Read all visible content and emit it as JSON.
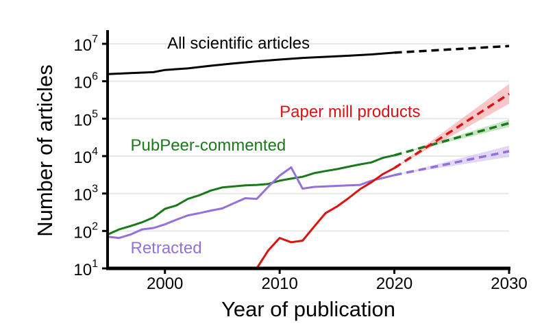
{
  "chart_data": {
    "type": "line",
    "xlabel": "Year of publication",
    "ylabel": "Number of articles",
    "xlim": [
      1995,
      2030
    ],
    "ylim": [
      10,
      10000000
    ],
    "yscale": "log",
    "grid": "horizontal",
    "xticks": [
      2000,
      2010,
      2020,
      2030
    ],
    "yticks": [
      {
        "base": "10",
        "exp": "1",
        "value": 10
      },
      {
        "base": "10",
        "exp": "2",
        "value": 100
      },
      {
        "base": "10",
        "exp": "3",
        "value": 1000
      },
      {
        "base": "10",
        "exp": "4",
        "value": 10000
      },
      {
        "base": "10",
        "exp": "5",
        "value": 100000
      },
      {
        "base": "10",
        "exp": "6",
        "value": 1000000
      },
      {
        "base": "10",
        "exp": "7",
        "value": 10000000
      }
    ],
    "series": [
      {
        "name": "All scientific articles",
        "color": "#000000",
        "label_year": 2000.2,
        "label_value": 7500000,
        "x": [
          1995,
          1997,
          1999,
          2000,
          2002,
          2004,
          2006,
          2008,
          2010,
          2012,
          2014,
          2016,
          2018,
          2020
        ],
        "y": [
          1550000,
          1650000,
          1750000,
          2000000,
          2200000,
          2600000,
          3000000,
          3400000,
          3800000,
          4200000,
          4500000,
          4800000,
          5200000,
          5800000
        ],
        "projection": {
          "x": [
            2020,
            2030
          ],
          "y": [
            5800000,
            8700000
          ],
          "band": null
        }
      },
      {
        "name": "PubPeer-commented",
        "color": "#1a7a1a",
        "band_color": "#9fd49a",
        "label_year": 1997,
        "label_value": 14000,
        "x": [
          1995,
          1996,
          1997,
          1998,
          1999,
          2000,
          2001,
          2002,
          2003,
          2004,
          2005,
          2006,
          2007,
          2008,
          2009,
          2010,
          2011,
          2012,
          2013,
          2014,
          2015,
          2016,
          2017,
          2018,
          2019,
          2020
        ],
        "y": [
          80,
          110,
          135,
          170,
          230,
          390,
          480,
          720,
          900,
          1200,
          1450,
          1550,
          1650,
          1700,
          1800,
          2200,
          2500,
          2800,
          3500,
          4000,
          4500,
          5200,
          6000,
          6800,
          9000,
          10500
        ],
        "projection": {
          "x": [
            2020,
            2030
          ],
          "y": [
            10500,
            76000
          ],
          "band": [
            60000,
            95000
          ]
        }
      },
      {
        "name": "Retracted",
        "color": "#9370db",
        "band_color": "#cdbcf0",
        "label_year": 1997,
        "label_value": 25,
        "x": [
          1995,
          1996,
          1997,
          1998,
          1999,
          2000,
          2001,
          2002,
          2003,
          2004,
          2005,
          2006,
          2007,
          2008,
          2009,
          2010,
          2011,
          2012,
          2013,
          2014,
          2015,
          2016,
          2017,
          2018,
          2019,
          2020
        ],
        "y": [
          70,
          65,
          80,
          110,
          120,
          150,
          200,
          260,
          300,
          350,
          400,
          550,
          750,
          720,
          1500,
          3000,
          5000,
          1350,
          1500,
          1550,
          1600,
          1650,
          1700,
          2200,
          2600,
          3100
        ],
        "projection": {
          "x": [
            2020,
            2030
          ],
          "y": [
            3100,
            13500
          ],
          "band": [
            9500,
            19000
          ]
        }
      },
      {
        "name": "Paper mill products",
        "color": "#dd1111",
        "band_color": "#f4a3a3",
        "label_year": 2010,
        "label_value": 110000,
        "x": [
          2008,
          2009,
          2010,
          2011,
          2012,
          2013,
          2014,
          2015,
          2016,
          2017,
          2018,
          2019,
          2020
        ],
        "y": [
          10,
          30,
          65,
          50,
          55,
          130,
          300,
          450,
          750,
          1300,
          2000,
          3300,
          4800
        ],
        "projection": {
          "x": [
            2020,
            2030
          ],
          "y": [
            4800,
            460000
          ],
          "band": [
            250000,
            850000
          ]
        }
      }
    ]
  }
}
